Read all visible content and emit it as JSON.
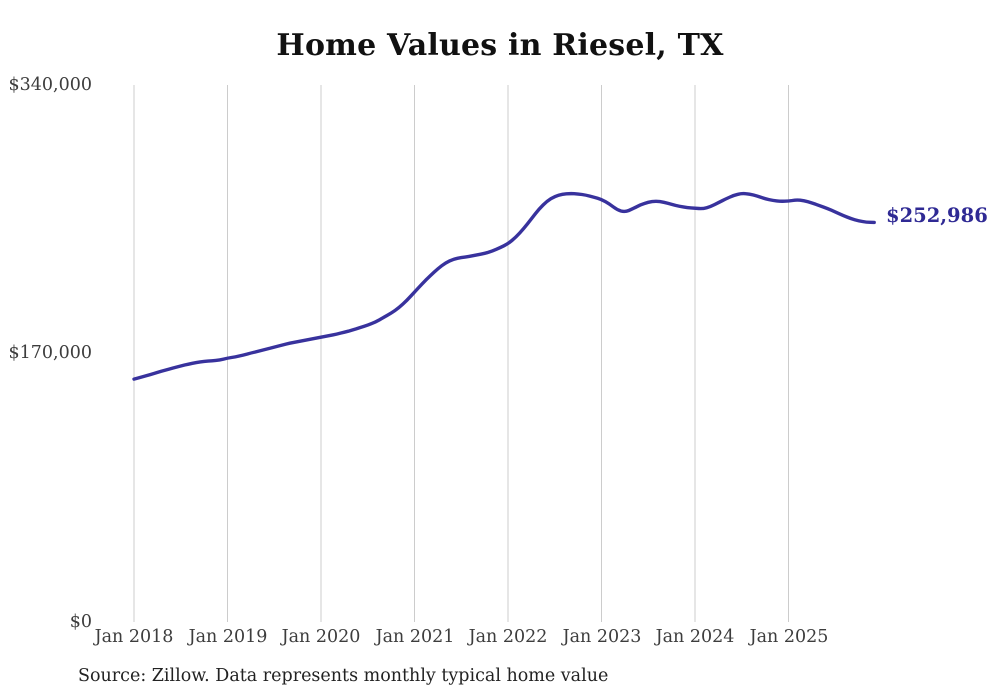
{
  "chart": {
    "title": "Home Values in Riesel, TX",
    "end_label": "$252,986",
    "source_note": "Source: Zillow. Data represents monthly typical home value",
    "colors": {
      "line": "#38329d",
      "end_label_text": "#2f2a94",
      "grid": "#cccccc",
      "axis_text": "#3d3d3d",
      "title_text": "#111111",
      "source_text": "#222222",
      "background": "#ffffff"
    }
  },
  "chart_data": {
    "type": "line",
    "title": "Home Values in Riesel, TX",
    "x_interval": "monthly",
    "x_range": [
      "Jan 2018",
      "Dec 2025"
    ],
    "x_ticks": [
      "Jan 2018",
      "Jan 2019",
      "Jan 2020",
      "Jan 2021",
      "Jan 2022",
      "Jan 2023",
      "Jan 2024",
      "Jan 2025"
    ],
    "y_ticks": [
      "$340,000",
      "$170,000",
      "$0"
    ],
    "ylabel": "",
    "xlabel": "",
    "ylim": [
      0,
      340000
    ],
    "grid": "vertical-only",
    "legend": "none",
    "end_point_label": "$252,986",
    "series": [
      {
        "name": "Typical home value (USD)",
        "values": [
          153800,
          155100,
          156500,
          158000,
          159400,
          160800,
          162100,
          163300,
          164300,
          165000,
          165400,
          165800,
          167100,
          167800,
          169000,
          170300,
          171500,
          172800,
          174100,
          175300,
          176600,
          177500,
          178500,
          179400,
          180400,
          181300,
          182300,
          183500,
          184800,
          186400,
          187900,
          189900,
          192700,
          195500,
          199000,
          203500,
          208900,
          214200,
          219200,
          223700,
          227500,
          229800,
          230700,
          231400,
          232400,
          233300,
          234900,
          237000,
          239500,
          243600,
          249000,
          255300,
          261600,
          266500,
          269500,
          270900,
          271300,
          271000,
          270300,
          269000,
          267500,
          264800,
          261000,
          259500,
          261600,
          264200,
          265800,
          266500,
          265800,
          264400,
          263200,
          262400,
          262000,
          261600,
          263000,
          265500,
          268000,
          270200,
          271400,
          271000,
          269700,
          268000,
          266900,
          266300,
          266500,
          267300,
          266800,
          265300,
          263600,
          261800,
          259600,
          257400,
          255400,
          254000,
          253100,
          252986
        ]
      }
    ]
  }
}
